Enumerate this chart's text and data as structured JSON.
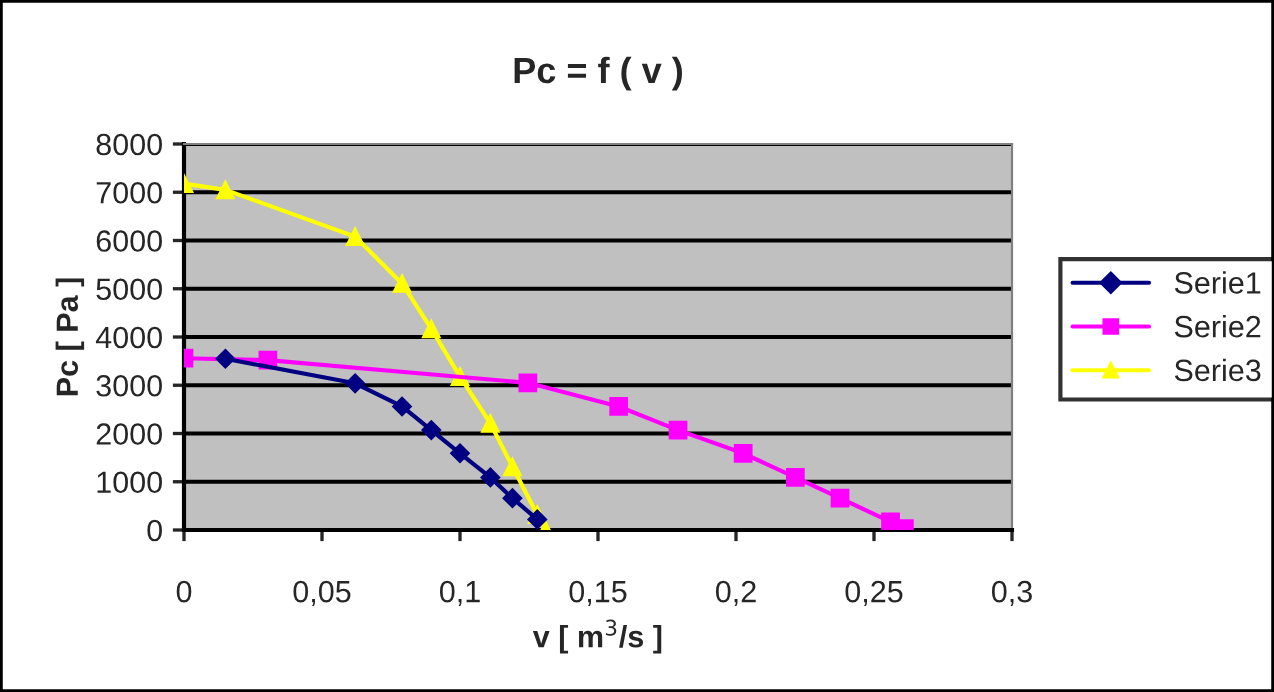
{
  "chart_data": {
    "type": "line",
    "title": "Pc = f ( v )",
    "xlabel": "v [ m$^{3}$/s ]",
    "ylabel": "Pc [ Pa ]",
    "series": [
      {
        "name": "Serie1",
        "color": "#000080",
        "marker": "diamond",
        "x": [
          0.015,
          0.062,
          0.079,
          0.0896,
          0.1,
          0.111,
          0.119,
          0.128
        ],
        "values": [
          3550,
          3040,
          2560,
          2070,
          1590,
          1090,
          660,
          220
        ]
      },
      {
        "name": "Serie2",
        "color": "#ff00ff",
        "marker": "square",
        "x": [
          0.0,
          0.0304,
          0.1246,
          0.1575,
          0.179,
          0.2026,
          0.2215,
          0.2377,
          0.256,
          0.261
        ],
        "values": [
          3560,
          3520,
          3050,
          2560,
          2070,
          1590,
          1090,
          660,
          170,
          30
        ]
      },
      {
        "name": "Serie3",
        "color": "#ffff00",
        "marker": "triangle",
        "x": [
          0.0,
          0.015,
          0.062,
          0.079,
          0.0896,
          0.1,
          0.111,
          0.119,
          0.128,
          0.131
        ],
        "values": [
          7180,
          7050,
          6080,
          5110,
          4170,
          3180,
          2210,
          1310,
          320,
          0
        ]
      }
    ],
    "xlim": [
      0,
      0.3
    ],
    "ylim": [
      0,
      8000
    ],
    "xticks": [
      0,
      {
        "value": 0.05,
        "label": "0,05"
      },
      {
        "value": 0.1,
        "label": "0,1"
      },
      {
        "value": 0.15,
        "label": "0,15"
      },
      {
        "value": 0.2,
        "label": "0,2"
      },
      {
        "value": 0.25,
        "label": "0,25"
      },
      {
        "value": 0.3,
        "label": "0,3"
      }
    ],
    "yticks": [
      0,
      1000,
      2000,
      3000,
      4000,
      5000,
      6000,
      7000,
      8000
    ],
    "grid": "y",
    "legend": "right"
  }
}
